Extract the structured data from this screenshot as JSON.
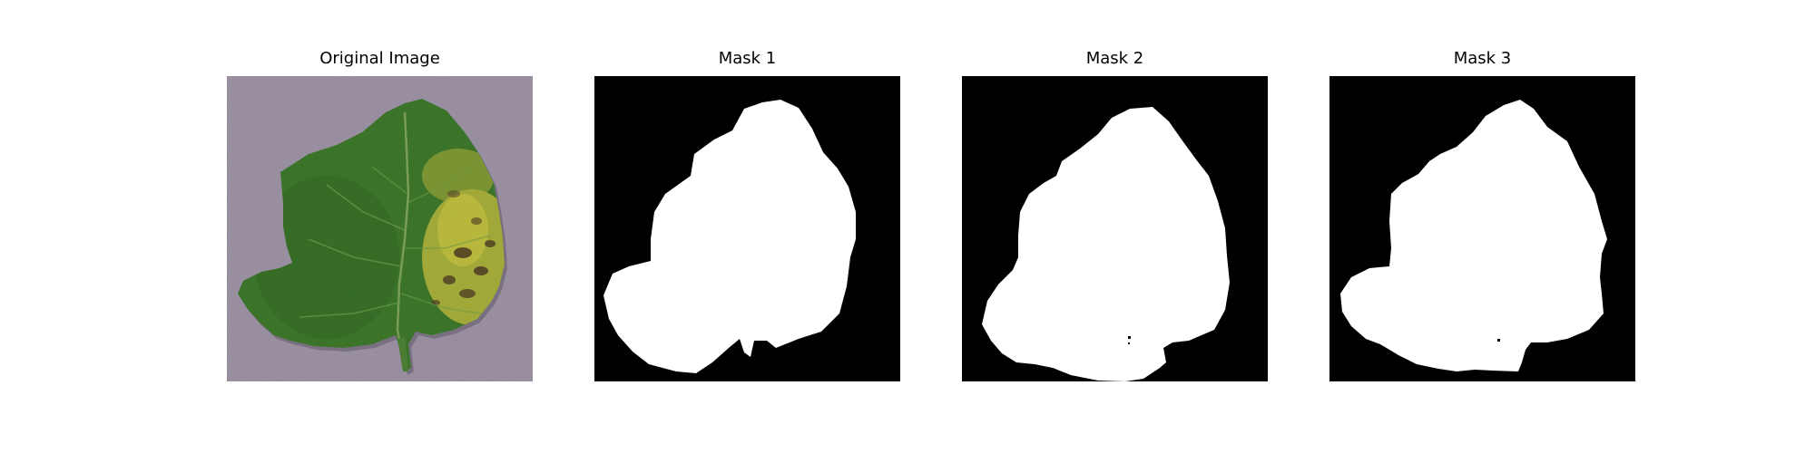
{
  "panels": [
    {
      "title": "Original Image"
    },
    {
      "title": "Mask 1"
    },
    {
      "title": "Mask 2"
    },
    {
      "title": "Mask 3"
    }
  ],
  "colors": {
    "background": "#9e94a6",
    "leaf": "#3e7a2c",
    "leaf_dark": "#2d5e22",
    "diseased": "#b3b23c",
    "lesion": "#4a3a22",
    "mask_background": "#000000",
    "mask_foreground": "#ffffff"
  }
}
